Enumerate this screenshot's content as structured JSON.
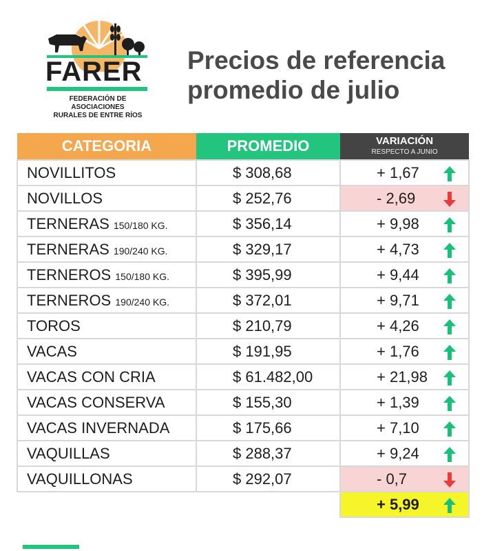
{
  "logo": {
    "name": "FARER",
    "subtitle_line1": "FEDERACIÓN DE ASOCIACIONES",
    "subtitle_line2": "RURALES DE ENTRE RÍOS"
  },
  "title": {
    "line1": "Precios de referencia",
    "line2": "promedio de julio"
  },
  "table": {
    "headers": {
      "categoria": "CATEGORIA",
      "promedio": "PROMEDIO",
      "variacion": "VARIACIÓN",
      "variacion_sub": "RESPECTO A JUNIO"
    },
    "rows": [
      {
        "categoria": "NOVILLITOS",
        "detalle": "",
        "promedio": "$ 308,68",
        "variacion": "+ 1,67",
        "trend": "up"
      },
      {
        "categoria": "NOVILLOS",
        "detalle": "",
        "promedio": "$ 252,76",
        "variacion": "- 2,69",
        "trend": "down"
      },
      {
        "categoria": "TERNERAS",
        "detalle": "150/180 KG.",
        "promedio": "$ 356,14",
        "variacion": "+ 9,98",
        "trend": "up"
      },
      {
        "categoria": "TERNERAS",
        "detalle": "190/240 KG.",
        "promedio": "$ 329,17",
        "variacion": "+ 4,73",
        "trend": "up"
      },
      {
        "categoria": "TERNEROS",
        "detalle": "150/180 KG.",
        "promedio": "$ 395,99",
        "variacion": "+ 9,44",
        "trend": "up"
      },
      {
        "categoria": "TERNEROS",
        "detalle": "190/240 KG.",
        "promedio": "$ 372,01",
        "variacion": "+ 9,71",
        "trend": "up"
      },
      {
        "categoria": "TOROS",
        "detalle": "",
        "promedio": "$ 210,79",
        "variacion": "+ 4,26",
        "trend": "up"
      },
      {
        "categoria": "VACAS",
        "detalle": "",
        "promedio": "$ 191,95",
        "variacion": "+ 1,76",
        "trend": "up"
      },
      {
        "categoria": "VACAS CON CRIA",
        "detalle": "",
        "promedio": "$ 61.482,00",
        "variacion": "+ 21,98",
        "trend": "up"
      },
      {
        "categoria": "VACAS CONSERVA",
        "detalle": "",
        "promedio": "$ 155,30",
        "variacion": "+ 1,39",
        "trend": "up"
      },
      {
        "categoria": "VACAS INVERNADA",
        "detalle": "",
        "promedio": "$ 175,66",
        "variacion": "+ 7,10",
        "trend": "up"
      },
      {
        "categoria": "VAQUILLAS",
        "detalle": "",
        "promedio": "$ 288,37",
        "variacion": "+ 9,24",
        "trend": "up"
      },
      {
        "categoria": "VAQUILLONAS",
        "detalle": "",
        "promedio": "$ 292,07",
        "variacion": "- 0,7",
        "trend": "down"
      }
    ],
    "total": {
      "variacion": "+ 5,99",
      "trend": "up"
    }
  },
  "colors": {
    "green": "#22c47e",
    "orange": "#f4a74c",
    "dark": "#444444",
    "negative_bg": "#f8d4d4",
    "up_arrow": "#19c07a",
    "down_arrow": "#ea3b3b",
    "total_bg": "#f6f52a"
  }
}
